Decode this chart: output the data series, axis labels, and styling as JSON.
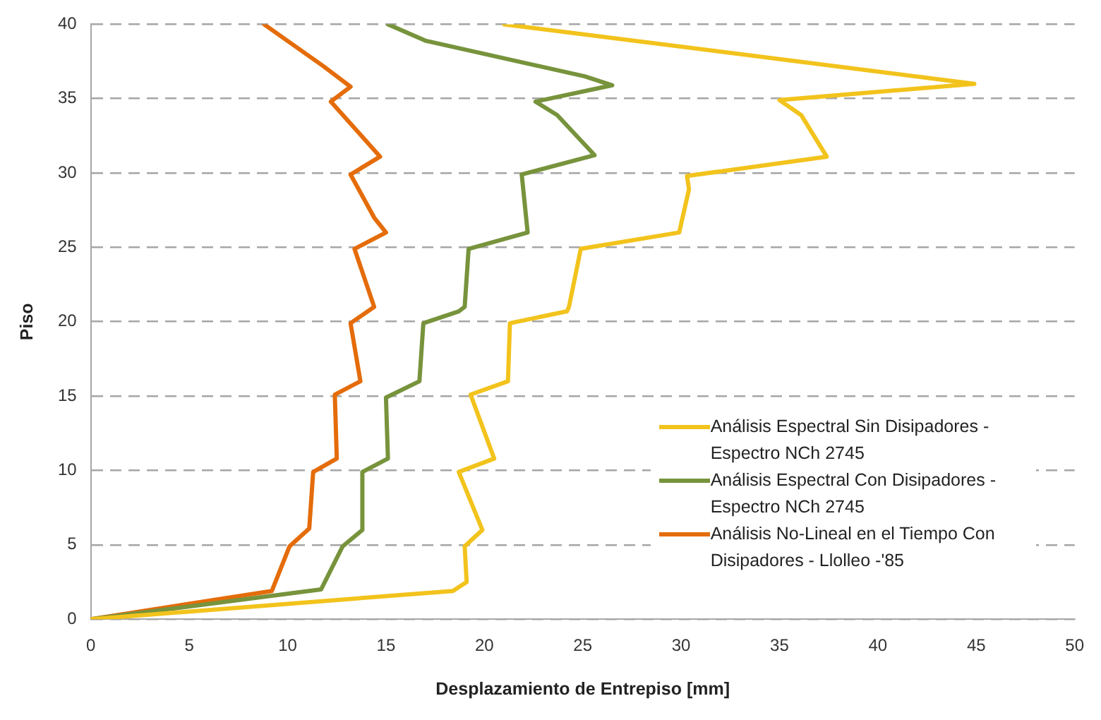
{
  "chart_data": {
    "type": "line",
    "xlabel": "Desplazamiento de Entrepiso [mm]",
    "ylabel": "Piso",
    "xlim": [
      0,
      50
    ],
    "xticks": [
      0,
      5,
      10,
      15,
      20,
      25,
      30,
      35,
      40,
      45,
      50
    ],
    "ylim": [
      0,
      40
    ],
    "yticks": [
      0,
      5,
      10,
      15,
      20,
      25,
      30,
      35,
      40
    ],
    "grid": "y",
    "legend": "bottom right",
    "marker": "none",
    "line_style": "solid",
    "series": [
      {
        "name": "Análisis Espectral Sin Disipadores - Espectro NCh 2745",
        "color": "#f2c31c",
        "x": [
          0,
          18.4,
          19.1,
          19.0,
          19.9,
          18.7,
          20.5,
          19.3,
          21.2,
          21.3,
          24.2,
          24.3,
          24.9,
          29.9,
          30.4,
          30.3,
          37.4,
          36.1,
          35.0,
          44.9,
          21.0
        ],
        "values": [
          0,
          1.9,
          2.5,
          4.9,
          6.0,
          9.9,
          10.8,
          15.1,
          16.0,
          19.9,
          20.7,
          21.0,
          24.9,
          26.0,
          28.9,
          29.8,
          31.1,
          33.9,
          34.9,
          36.0,
          40
        ]
      },
      {
        "name": "Análisis Espectral Con Disipadores - Espectro NCh 2745",
        "color": "#77933c",
        "x": [
          0,
          11.7,
          12.8,
          13.8,
          13.8,
          15.1,
          15.0,
          16.7,
          16.9,
          18.7,
          19.0,
          19.2,
          22.2,
          21.9,
          25.6,
          23.7,
          22.6,
          26.5,
          25.1,
          17.0,
          15.1
        ],
        "values": [
          0,
          2.0,
          4.9,
          6.0,
          9.9,
          10.8,
          14.9,
          16.0,
          19.9,
          20.7,
          21.0,
          24.9,
          26.0,
          29.9,
          31.2,
          33.9,
          34.8,
          35.9,
          36.5,
          38.9,
          40
        ]
      },
      {
        "name": "Análisis No-Lineal en el Tiempo Con Disipadores - Llolleo -'85",
        "color": "#e46c0a",
        "x": [
          0,
          9.2,
          10.1,
          11.1,
          11.3,
          12.5,
          12.4,
          13.7,
          13.2,
          14.4,
          13.4,
          15.0,
          14.4,
          13.2,
          14.7,
          12.2,
          13.2,
          12.5,
          11.8,
          8.8
        ],
        "values": [
          0,
          1.9,
          4.9,
          6.1,
          9.9,
          10.8,
          15.1,
          16.0,
          19.9,
          21.0,
          24.9,
          26.0,
          27.0,
          29.9,
          31.1,
          34.8,
          35.8,
          36.5,
          37.2,
          40
        ]
      }
    ]
  }
}
